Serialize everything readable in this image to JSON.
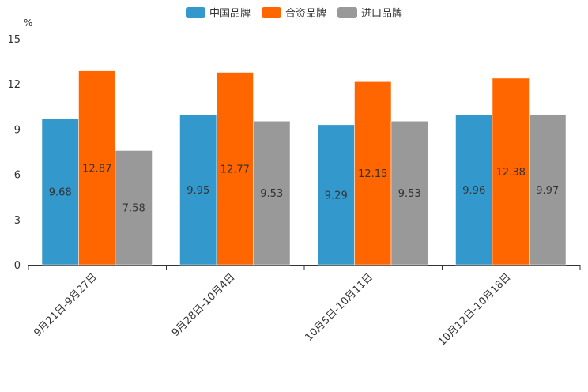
{
  "chart_data": {
    "type": "bar",
    "title": "",
    "unit": "%",
    "xlabel": "",
    "ylabel": "%",
    "ylim": [
      0,
      15
    ],
    "yticks": [
      0,
      3,
      6,
      9,
      12,
      15
    ],
    "categories": [
      "9月21日-9月27日",
      "9月28日-10月4日",
      "10月5日-10月11日",
      "10月12日-10月18日"
    ],
    "series": [
      {
        "name": "中国品牌",
        "color": "#3399cc",
        "values": [
          9.68,
          9.95,
          9.29,
          9.96
        ]
      },
      {
        "name": "合资品牌",
        "color": "#ff6600",
        "values": [
          12.87,
          12.77,
          12.15,
          12.38
        ]
      },
      {
        "name": "进口品牌",
        "color": "#999999",
        "values": [
          7.58,
          9.53,
          9.53,
          9.97
        ]
      }
    ],
    "legend_position": "top-center",
    "grid": false
  }
}
